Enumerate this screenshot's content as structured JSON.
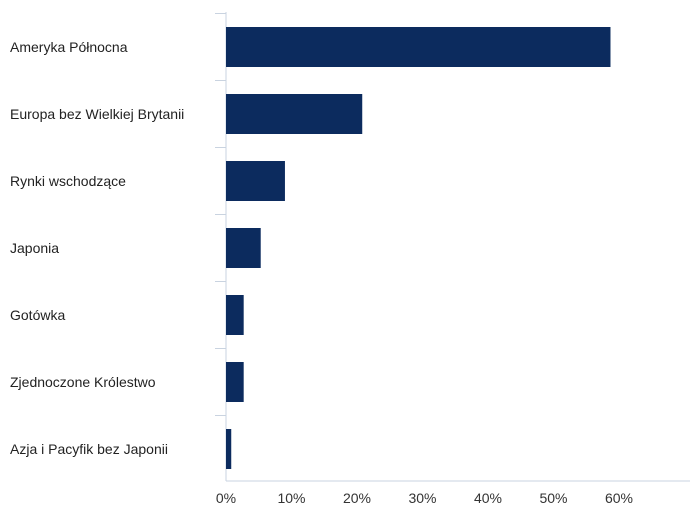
{
  "colors": {
    "bar": "#0c2b5e",
    "axis": "#c9d3e0",
    "text": "#222222",
    "background": "#ffffff"
  },
  "chart_data": {
    "type": "bar",
    "orientation": "horizontal",
    "categories": [
      "Ameryka Północna",
      "Europa bez Wielkiej Brytanii",
      "Rynki wschodzące",
      "Japonia",
      "Gotówka",
      "Zjednoczone Królestwo",
      "Azja i Pacyfik bez Japonii"
    ],
    "values": [
      58.7,
      20.8,
      9.0,
      5.3,
      2.7,
      2.7,
      0.8
    ],
    "xlim": [
      0,
      60
    ],
    "xticks": [
      0,
      10,
      20,
      30,
      40,
      50,
      60
    ],
    "tick_labels": [
      "0%",
      "10%",
      "20%",
      "30%",
      "40%",
      "50%",
      "60%"
    ],
    "grid": false,
    "legend": "none"
  }
}
